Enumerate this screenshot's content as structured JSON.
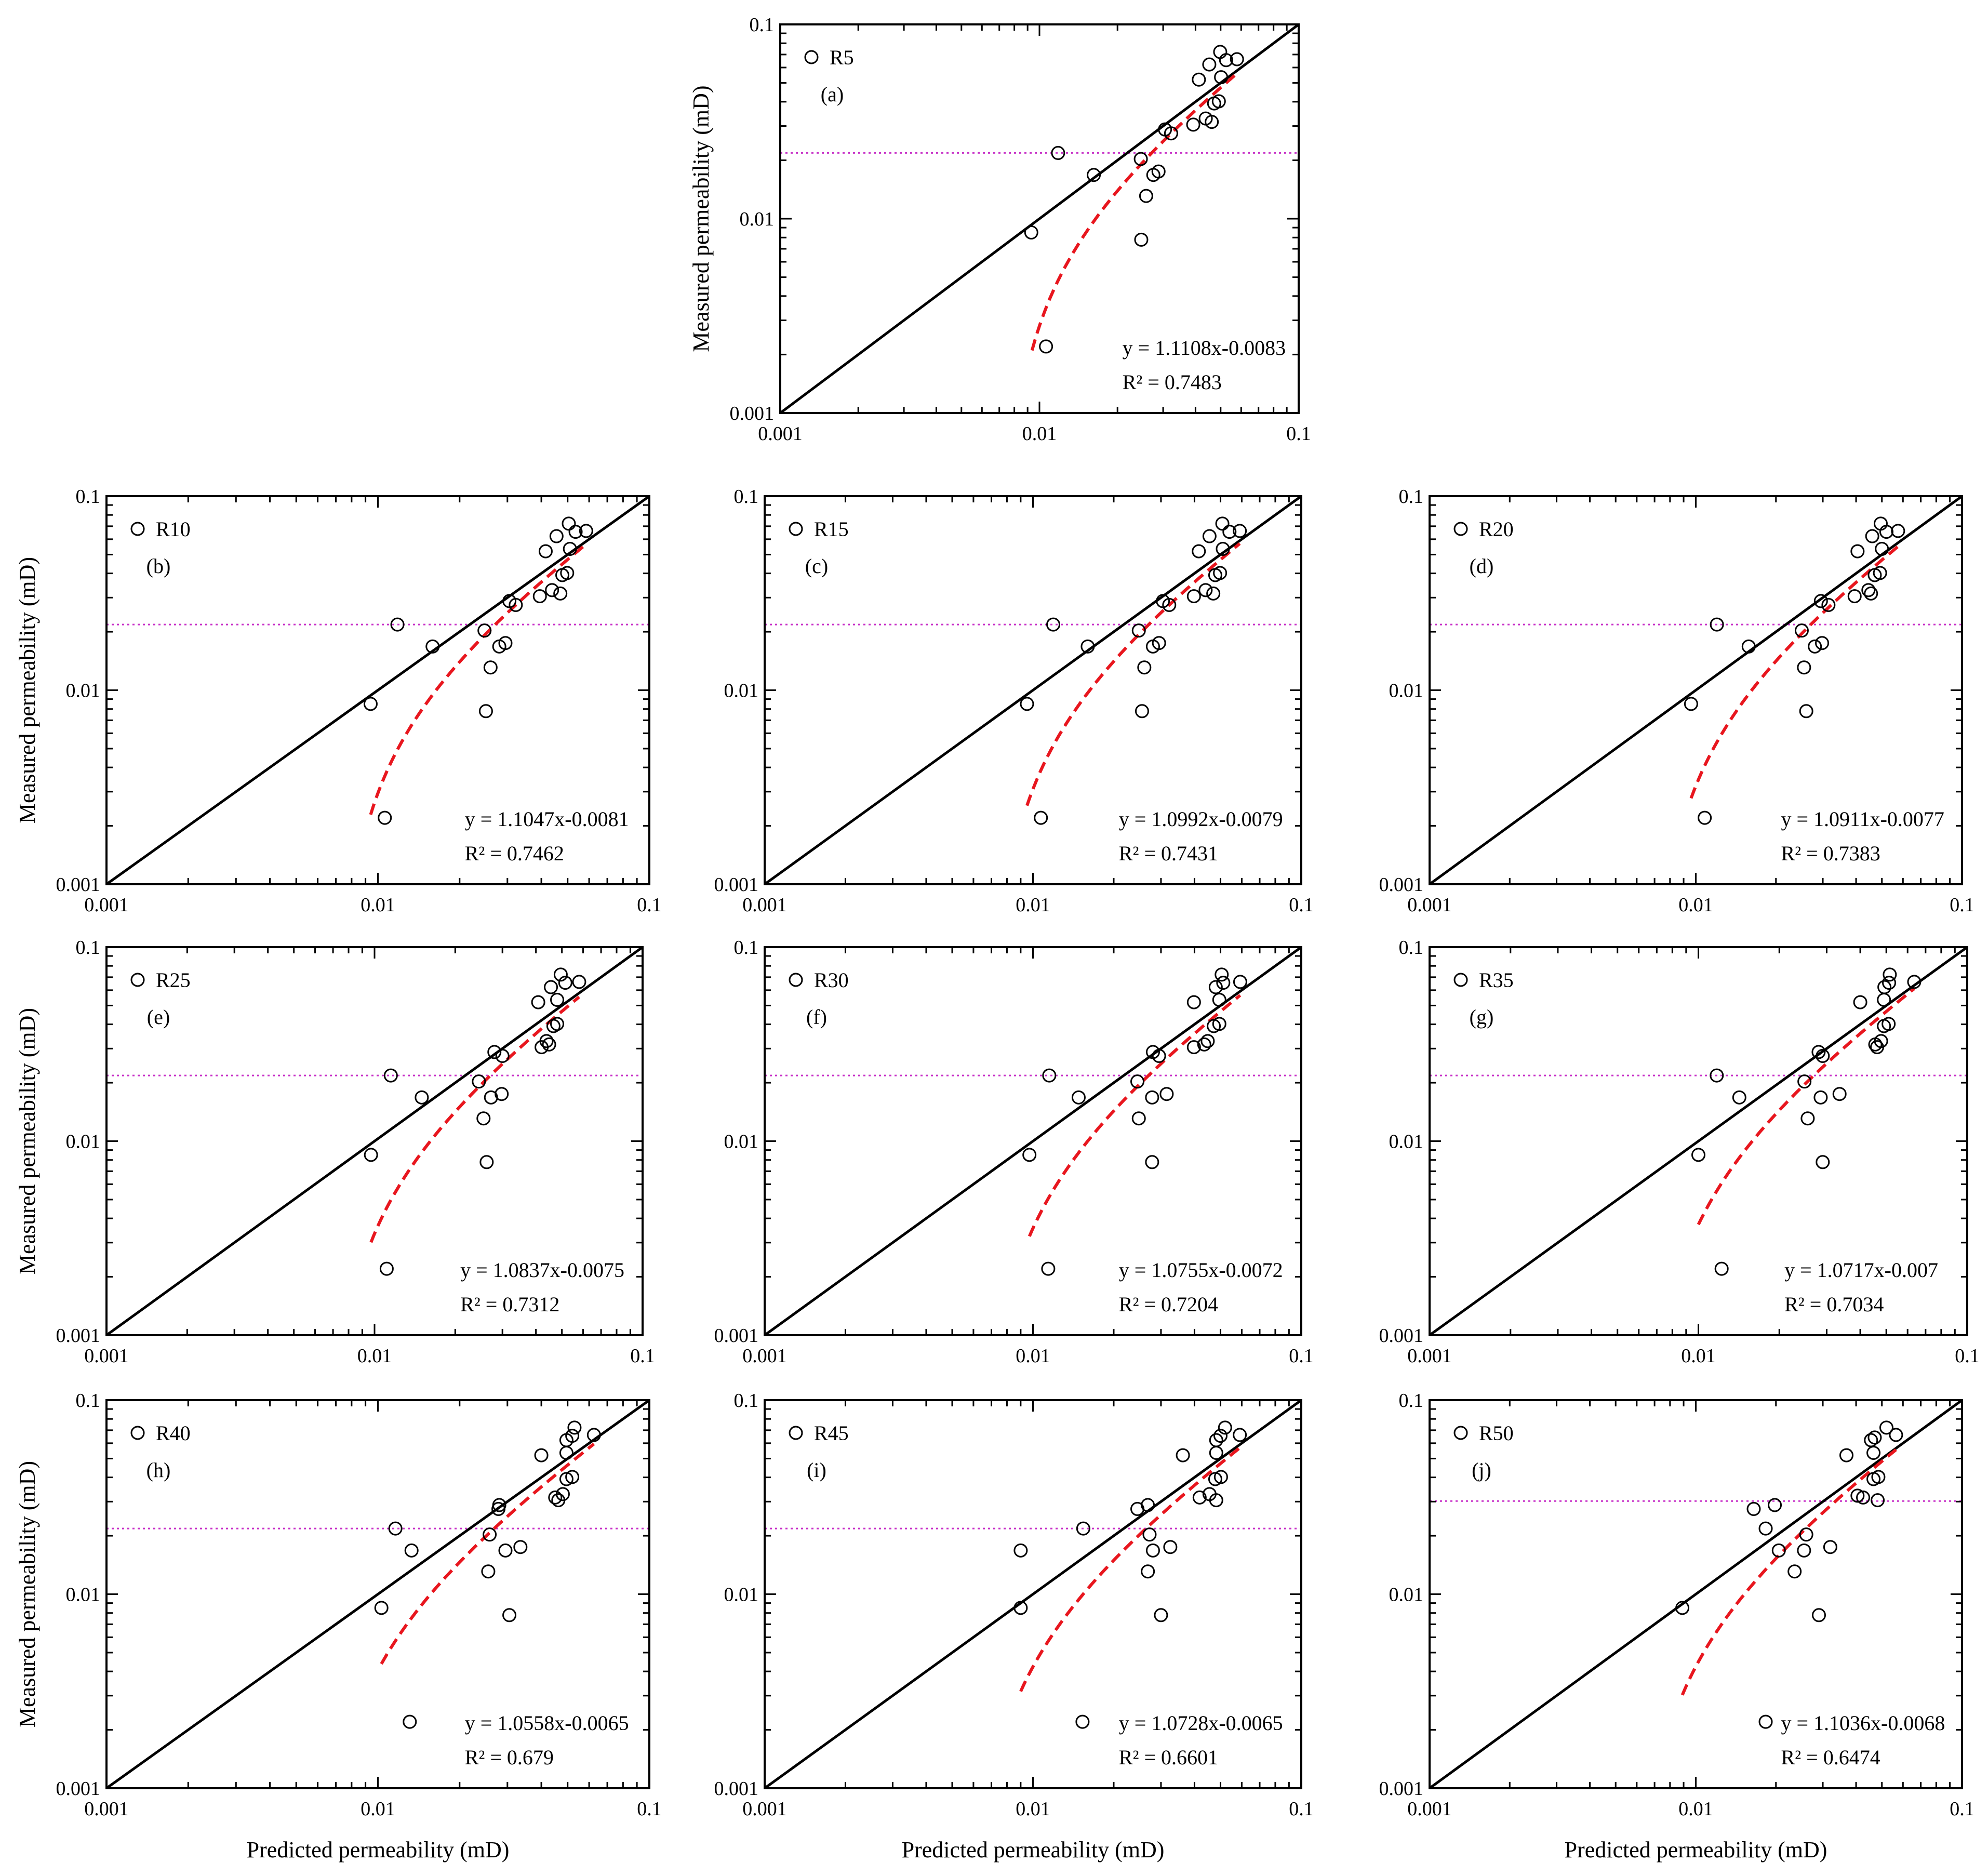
{
  "figure": {
    "x_axis_label": "Predicted permeability (mD)",
    "y_axis_label": "Measured permeability (mD)"
  },
  "colors": {
    "one_to_one_line": "#000000",
    "fit_curve": "#e8161e",
    "threshold_line": "#c832c8",
    "marker_stroke": "#000000"
  },
  "chart_data": [
    {
      "type": "scatter",
      "scale": "log",
      "panel": "(a)",
      "legend": "R5",
      "xlim": [
        0.001,
        0.1
      ],
      "ylim": [
        0.001,
        0.1
      ],
      "xticks": [
        "0.001",
        "0.01",
        "0.1"
      ],
      "yticks": [
        "0.001",
        "0.01",
        "0.1"
      ],
      "equation": "y = 1.1108x-0.0083",
      "r2": "R² = 0.7483",
      "slope": 1.1108,
      "intercept": -0.0083,
      "threshold": 0.0218,
      "points": [
        [
          0.0093,
          0.0085
        ],
        [
          0.0106,
          0.0022
        ],
        [
          0.0118,
          0.0218
        ],
        [
          0.0162,
          0.0168
        ],
        [
          0.0246,
          0.0203
        ],
        [
          0.0247,
          0.0078
        ],
        [
          0.0258,
          0.0131
        ],
        [
          0.0275,
          0.0168
        ],
        [
          0.0288,
          0.0175
        ],
        [
          0.0305,
          0.0288
        ],
        [
          0.0322,
          0.0275
        ],
        [
          0.0392,
          0.0305
        ],
        [
          0.0412,
          0.052
        ],
        [
          0.0438,
          0.0328
        ],
        [
          0.0452,
          0.0622
        ],
        [
          0.0462,
          0.0315
        ],
        [
          0.0472,
          0.0392
        ],
        [
          0.0492,
          0.0402
        ],
        [
          0.0498,
          0.0722
        ],
        [
          0.0502,
          0.0535
        ],
        [
          0.0525,
          0.0655
        ],
        [
          0.0578,
          0.0662
        ]
      ]
    },
    {
      "type": "scatter",
      "scale": "log",
      "panel": "(b)",
      "legend": "R10",
      "xlim": [
        0.001,
        0.1
      ],
      "ylim": [
        0.001,
        0.1
      ],
      "xticks": [
        "0.001",
        "0.01",
        "0.1"
      ],
      "yticks": [
        "0.001",
        "0.01",
        "0.1"
      ],
      "equation": "y = 1.1047x-0.0081",
      "r2": "R² = 0.7462",
      "slope": 1.1047,
      "intercept": -0.0081,
      "threshold": 0.0218,
      "points": [
        [
          0.0094,
          0.0085
        ],
        [
          0.0106,
          0.0022
        ],
        [
          0.0118,
          0.0218
        ],
        [
          0.0159,
          0.0168
        ],
        [
          0.0247,
          0.0203
        ],
        [
          0.025,
          0.0078
        ],
        [
          0.026,
          0.0131
        ],
        [
          0.028,
          0.0168
        ],
        [
          0.0295,
          0.0175
        ],
        [
          0.0305,
          0.0288
        ],
        [
          0.0322,
          0.0275
        ],
        [
          0.0395,
          0.0305
        ],
        [
          0.0415,
          0.052
        ],
        [
          0.0438,
          0.0328
        ],
        [
          0.0455,
          0.0622
        ],
        [
          0.047,
          0.0315
        ],
        [
          0.0478,
          0.0392
        ],
        [
          0.0498,
          0.0402
        ],
        [
          0.0505,
          0.0722
        ],
        [
          0.051,
          0.0535
        ],
        [
          0.0535,
          0.0655
        ],
        [
          0.0585,
          0.0662
        ]
      ]
    },
    {
      "type": "scatter",
      "scale": "log",
      "panel": "(c)",
      "legend": "R15",
      "xlim": [
        0.001,
        0.1
      ],
      "ylim": [
        0.001,
        0.1
      ],
      "xticks": [
        "0.001",
        "0.01",
        "0.1"
      ],
      "yticks": [
        "0.001",
        "0.01",
        "0.1"
      ],
      "equation": "y = 1.0992x-0.0079",
      "r2": "R² = 0.7431",
      "slope": 1.0992,
      "intercept": -0.0079,
      "threshold": 0.0218,
      "points": [
        [
          0.0095,
          0.0085
        ],
        [
          0.0107,
          0.0022
        ],
        [
          0.0119,
          0.0218
        ],
        [
          0.016,
          0.0168
        ],
        [
          0.0248,
          0.0203
        ],
        [
          0.0255,
          0.0078
        ],
        [
          0.026,
          0.0131
        ],
        [
          0.028,
          0.0168
        ],
        [
          0.0295,
          0.0175
        ],
        [
          0.0305,
          0.0288
        ],
        [
          0.0322,
          0.0275
        ],
        [
          0.0398,
          0.0305
        ],
        [
          0.0415,
          0.052
        ],
        [
          0.044,
          0.0328
        ],
        [
          0.0455,
          0.0622
        ],
        [
          0.047,
          0.0315
        ],
        [
          0.0478,
          0.0392
        ],
        [
          0.0498,
          0.0402
        ],
        [
          0.0508,
          0.0722
        ],
        [
          0.051,
          0.0535
        ],
        [
          0.054,
          0.0655
        ],
        [
          0.059,
          0.0662
        ]
      ]
    },
    {
      "type": "scatter",
      "scale": "log",
      "panel": "(d)",
      "legend": "R20",
      "xlim": [
        0.001,
        0.1
      ],
      "ylim": [
        0.001,
        0.1
      ],
      "xticks": [
        "0.001",
        "0.01",
        "0.1"
      ],
      "yticks": [
        "0.001",
        "0.01",
        "0.1"
      ],
      "equation": "y = 1.0911x-0.0077",
      "r2": "R² = 0.7383",
      "slope": 1.0911,
      "intercept": -0.0077,
      "threshold": 0.0218,
      "points": [
        [
          0.0096,
          0.0085
        ],
        [
          0.0108,
          0.0022
        ],
        [
          0.012,
          0.0218
        ],
        [
          0.0158,
          0.0168
        ],
        [
          0.025,
          0.0203
        ],
        [
          0.026,
          0.0078
        ],
        [
          0.0255,
          0.0131
        ],
        [
          0.028,
          0.0168
        ],
        [
          0.0298,
          0.0175
        ],
        [
          0.0295,
          0.0288
        ],
        [
          0.0315,
          0.0275
        ],
        [
          0.0395,
          0.0305
        ],
        [
          0.0405,
          0.052
        ],
        [
          0.0445,
          0.0328
        ],
        [
          0.046,
          0.0622
        ],
        [
          0.0455,
          0.0315
        ],
        [
          0.047,
          0.0392
        ],
        [
          0.0492,
          0.0402
        ],
        [
          0.0495,
          0.0722
        ],
        [
          0.05,
          0.0535
        ],
        [
          0.052,
          0.0655
        ],
        [
          0.0575,
          0.0662
        ]
      ]
    },
    {
      "type": "scatter",
      "scale": "log",
      "panel": "(e)",
      "legend": "R25",
      "xlim": [
        0.001,
        0.1
      ],
      "ylim": [
        0.001,
        0.1
      ],
      "xticks": [
        "0.001",
        "0.01",
        "0.1"
      ],
      "yticks": [
        "0.001",
        "0.01",
        "0.1"
      ],
      "equation": "y = 1.0837x-0.0075",
      "r2": "R² = 0.7312",
      "slope": 1.0837,
      "intercept": -0.0075,
      "threshold": 0.0218,
      "points": [
        [
          0.0097,
          0.0085
        ],
        [
          0.0111,
          0.0022
        ],
        [
          0.0115,
          0.0218
        ],
        [
          0.015,
          0.0168
        ],
        [
          0.0245,
          0.0203
        ],
        [
          0.0262,
          0.0078
        ],
        [
          0.0255,
          0.0131
        ],
        [
          0.0272,
          0.0168
        ],
        [
          0.0298,
          0.0175
        ],
        [
          0.028,
          0.0288
        ],
        [
          0.03,
          0.0275
        ],
        [
          0.0408,
          0.052
        ],
        [
          0.042,
          0.0305
        ],
        [
          0.0438,
          0.0328
        ],
        [
          0.0455,
          0.0622
        ],
        [
          0.0448,
          0.0315
        ],
        [
          0.0465,
          0.0392
        ],
        [
          0.048,
          0.0402
        ],
        [
          0.0495,
          0.0722
        ],
        [
          0.048,
          0.0535
        ],
        [
          0.0515,
          0.0655
        ],
        [
          0.058,
          0.0662
        ]
      ]
    },
    {
      "type": "scatter",
      "scale": "log",
      "panel": "(f)",
      "legend": "R30",
      "xlim": [
        0.001,
        0.1
      ],
      "ylim": [
        0.001,
        0.1
      ],
      "xticks": [
        "0.001",
        "0.01",
        "0.1"
      ],
      "yticks": [
        "0.001",
        "0.01",
        "0.1"
      ],
      "equation": "y = 1.0755x-0.0072",
      "r2": "R² = 0.7204",
      "slope": 1.0755,
      "intercept": -0.0072,
      "threshold": 0.0218,
      "points": [
        [
          0.0097,
          0.0085
        ],
        [
          0.0114,
          0.0022
        ],
        [
          0.0115,
          0.0218
        ],
        [
          0.0148,
          0.0168
        ],
        [
          0.0245,
          0.0203
        ],
        [
          0.0278,
          0.0078
        ],
        [
          0.0248,
          0.0131
        ],
        [
          0.0278,
          0.0168
        ],
        [
          0.0315,
          0.0175
        ],
        [
          0.028,
          0.0288
        ],
        [
          0.0295,
          0.0275
        ],
        [
          0.0398,
          0.052
        ],
        [
          0.0398,
          0.0305
        ],
        [
          0.0448,
          0.0328
        ],
        [
          0.048,
          0.0622
        ],
        [
          0.0435,
          0.0315
        ],
        [
          0.0472,
          0.0392
        ],
        [
          0.0495,
          0.0402
        ],
        [
          0.0505,
          0.0722
        ],
        [
          0.0495,
          0.0535
        ],
        [
          0.0512,
          0.0655
        ],
        [
          0.0592,
          0.0662
        ]
      ]
    },
    {
      "type": "scatter",
      "scale": "log",
      "panel": "(g)",
      "legend": "R35",
      "xlim": [
        0.001,
        0.1
      ],
      "ylim": [
        0.001,
        0.1
      ],
      "xticks": [
        "0.001",
        "0.01",
        "0.1"
      ],
      "yticks": [
        "0.001",
        "0.01",
        "0.1"
      ],
      "equation": "y = 1.0717x-0.007",
      "r2": "R² = 0.7034",
      "slope": 1.0717,
      "intercept": -0.007,
      "threshold": 0.0218,
      "points": [
        [
          0.01,
          0.0085
        ],
        [
          0.0122,
          0.0022
        ],
        [
          0.0117,
          0.0218
        ],
        [
          0.0142,
          0.0168
        ],
        [
          0.0248,
          0.0203
        ],
        [
          0.029,
          0.0078
        ],
        [
          0.0255,
          0.0131
        ],
        [
          0.0285,
          0.0168
        ],
        [
          0.0335,
          0.0175
        ],
        [
          0.028,
          0.0288
        ],
        [
          0.029,
          0.0275
        ],
        [
          0.04,
          0.052
        ],
        [
          0.0462,
          0.0305
        ],
        [
          0.0478,
          0.0328
        ],
        [
          0.0492,
          0.0622
        ],
        [
          0.0455,
          0.0315
        ],
        [
          0.049,
          0.0392
        ],
        [
          0.051,
          0.0402
        ],
        [
          0.0515,
          0.0722
        ],
        [
          0.049,
          0.0535
        ],
        [
          0.0512,
          0.0655
        ],
        [
          0.0635,
          0.0662
        ]
      ]
    },
    {
      "type": "scatter",
      "scale": "log",
      "panel": "(h)",
      "legend": "R40",
      "xlim": [
        0.001,
        0.1
      ],
      "ylim": [
        0.001,
        0.1
      ],
      "xticks": [
        "0.001",
        "0.01",
        "0.1"
      ],
      "yticks": [
        "0.001",
        "0.01",
        "0.1"
      ],
      "equation": "y = 1.0558x-0.0065",
      "r2": "R² = 0.679",
      "slope": 1.0558,
      "intercept": -0.0065,
      "threshold": 0.0218,
      "points": [
        [
          0.0103,
          0.0085
        ],
        [
          0.0131,
          0.0022
        ],
        [
          0.0116,
          0.0218
        ],
        [
          0.0133,
          0.0168
        ],
        [
          0.0258,
          0.0203
        ],
        [
          0.0305,
          0.0078
        ],
        [
          0.0255,
          0.0131
        ],
        [
          0.0295,
          0.0168
        ],
        [
          0.0335,
          0.0175
        ],
        [
          0.028,
          0.0288
        ],
        [
          0.0278,
          0.0275
        ],
        [
          0.04,
          0.052
        ],
        [
          0.0462,
          0.0305
        ],
        [
          0.048,
          0.0328
        ],
        [
          0.0495,
          0.0622
        ],
        [
          0.045,
          0.0315
        ],
        [
          0.0495,
          0.0392
        ],
        [
          0.052,
          0.0402
        ],
        [
          0.053,
          0.0722
        ],
        [
          0.0495,
          0.0535
        ],
        [
          0.052,
          0.0655
        ],
        [
          0.0625,
          0.0662
        ]
      ]
    },
    {
      "type": "scatter",
      "scale": "log",
      "panel": "(i)",
      "legend": "R45",
      "xlim": [
        0.001,
        0.1
      ],
      "ylim": [
        0.001,
        0.1
      ],
      "xticks": [
        "0.001",
        "0.01",
        "0.1"
      ],
      "yticks": [
        "0.001",
        "0.01",
        "0.1"
      ],
      "equation": "y = 1.0728x-0.0065",
      "r2": "R² = 0.6601",
      "slope": 1.0728,
      "intercept": -0.0065,
      "threshold": 0.0218,
      "points": [
        [
          0.009,
          0.0085
        ],
        [
          0.0153,
          0.0022
        ],
        [
          0.0154,
          0.0218
        ],
        [
          0.009,
          0.0168
        ],
        [
          0.0272,
          0.0203
        ],
        [
          0.03,
          0.0078
        ],
        [
          0.0268,
          0.0131
        ],
        [
          0.028,
          0.0168
        ],
        [
          0.0325,
          0.0175
        ],
        [
          0.0268,
          0.0288
        ],
        [
          0.0245,
          0.0275
        ],
        [
          0.0362,
          0.052
        ],
        [
          0.0482,
          0.0305
        ],
        [
          0.0455,
          0.0328
        ],
        [
          0.0482,
          0.0622
        ],
        [
          0.0418,
          0.0315
        ],
        [
          0.0478,
          0.0392
        ],
        [
          0.0502,
          0.0402
        ],
        [
          0.052,
          0.0722
        ],
        [
          0.0482,
          0.0535
        ],
        [
          0.05,
          0.0655
        ],
        [
          0.059,
          0.0662
        ]
      ]
    },
    {
      "type": "scatter",
      "scale": "log",
      "panel": "(j)",
      "legend": "R50",
      "xlim": [
        0.001,
        0.1
      ],
      "ylim": [
        0.001,
        0.1
      ],
      "xticks": [
        "0.001",
        "0.01",
        "0.1"
      ],
      "yticks": [
        "0.001",
        "0.01",
        "0.1"
      ],
      "equation": "y = 1.1036x-0.0068",
      "r2": "R² = 0.6474",
      "slope": 1.1036,
      "intercept": -0.0068,
      "threshold": 0.0302,
      "points": [
        [
          0.0089,
          0.0085
        ],
        [
          0.0183,
          0.0022
        ],
        [
          0.0183,
          0.0218
        ],
        [
          0.0165,
          0.0275
        ],
        [
          0.026,
          0.0203
        ],
        [
          0.029,
          0.0078
        ],
        [
          0.0235,
          0.0131
        ],
        [
          0.0255,
          0.0168
        ],
        [
          0.032,
          0.0175
        ],
        [
          0.0198,
          0.0288
        ],
        [
          0.0205,
          0.0168
        ],
        [
          0.0368,
          0.052
        ],
        [
          0.0482,
          0.0305
        ],
        [
          0.0425,
          0.0315
        ],
        [
          0.0455,
          0.0622
        ],
        [
          0.0405,
          0.0322
        ],
        [
          0.0465,
          0.0392
        ],
        [
          0.0485,
          0.0402
        ],
        [
          0.052,
          0.0722
        ],
        [
          0.0465,
          0.0535
        ],
        [
          0.047,
          0.0642
        ],
        [
          0.0565,
          0.0662
        ]
      ]
    }
  ]
}
